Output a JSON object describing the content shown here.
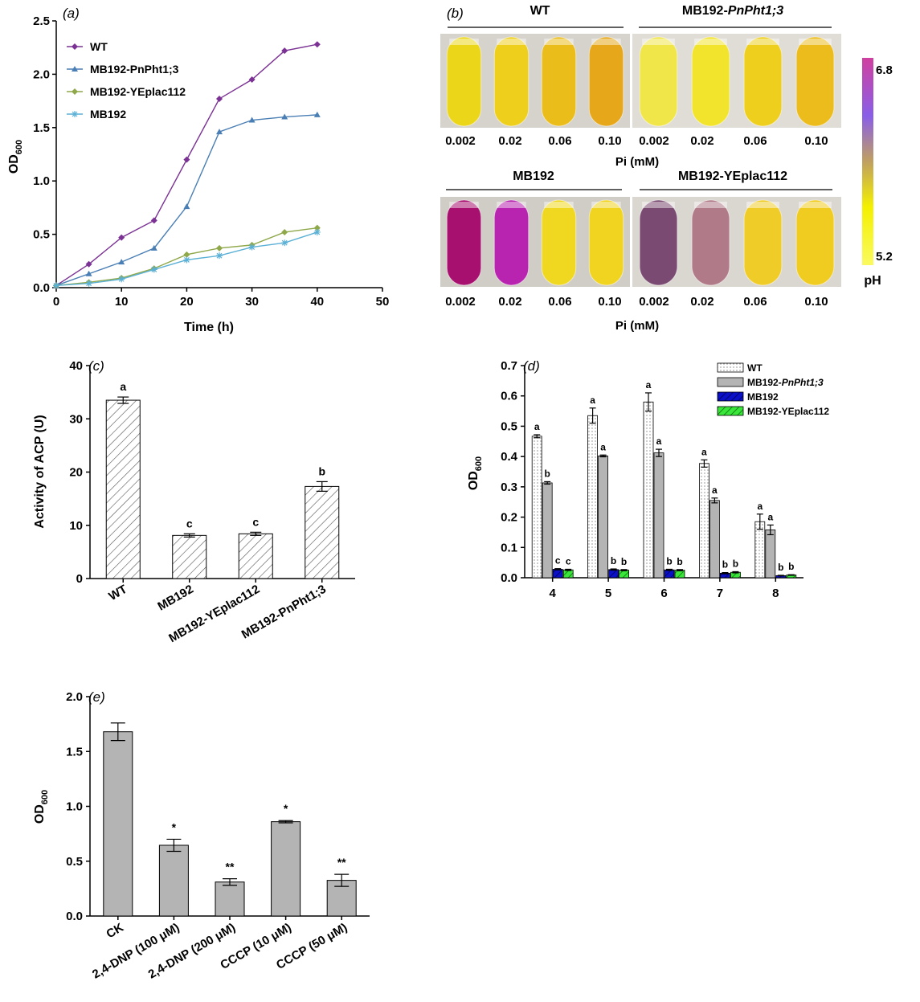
{
  "colors": {
    "wt": "#7b3294",
    "pnpht": "#4a7fb5",
    "yeplac": "#8fa84a",
    "mb192": "#5bb0d6",
    "bar_blue": "#0a10c8",
    "bar_green": "#39e639",
    "bar_gray": "#b4b4b4",
    "yellow": "#f2e21a",
    "orange": "#e8a81a",
    "magenta": "#b0106a",
    "violet": "#a83ac8",
    "mauve": "#8a5a7a",
    "pink": "#c08088"
  },
  "chart_data": [
    {
      "panel": "(a)",
      "type": "line",
      "xlabel": "Time (h)",
      "ylabel": "OD",
      "ylabel_sub": "600",
      "xlim": [
        0,
        50
      ],
      "ylim": [
        0,
        2.5
      ],
      "xticks": [
        "0",
        "10",
        "20",
        "30",
        "40",
        "50"
      ],
      "yticks": [
        "0.0",
        "0.5",
        "1.0",
        "1.5",
        "2.0",
        "2.5"
      ],
      "legend_position": "top-left",
      "x": [
        0,
        5,
        10,
        15,
        20,
        25,
        30,
        35,
        40
      ],
      "series": [
        {
          "name": "WT",
          "marker": "diamond",
          "values": [
            0.02,
            0.22,
            0.47,
            0.63,
            1.2,
            1.77,
            1.95,
            2.22,
            2.28
          ]
        },
        {
          "name": "MB192-PnPht1;3",
          "marker": "triangle",
          "values": [
            0.02,
            0.13,
            0.24,
            0.37,
            0.76,
            1.46,
            1.57,
            1.6,
            1.62
          ]
        },
        {
          "name": "MB192-YEplac112",
          "marker": "diamond",
          "values": [
            0.02,
            0.05,
            0.09,
            0.18,
            0.31,
            0.37,
            0.4,
            0.52,
            0.56
          ]
        },
        {
          "name": "MB192",
          "marker": "star",
          "values": [
            0.02,
            0.04,
            0.08,
            0.17,
            0.26,
            0.3,
            0.38,
            0.42,
            0.52
          ]
        }
      ]
    },
    {
      "panel": "(c)",
      "type": "bar",
      "ylabel": "Activity of ACP (U)",
      "ylim": [
        0,
        40
      ],
      "yticks": [
        "0",
        "10",
        "20",
        "30",
        "40"
      ],
      "categories": [
        "WT",
        "MB192",
        "MB192-YEplac112",
        "MB192-PnPht1;3"
      ],
      "values": [
        33.5,
        8.1,
        8.4,
        17.3
      ],
      "errors": [
        0.6,
        0.3,
        0.3,
        0.9
      ],
      "letters": [
        "a",
        "c",
        "c",
        "b"
      ]
    },
    {
      "panel": "(d)",
      "type": "bar",
      "ylabel": "OD",
      "ylabel_sub": "600",
      "ylim": [
        0,
        0.7
      ],
      "yticks": [
        "0.0",
        "0.1",
        "0.2",
        "0.3",
        "0.4",
        "0.5",
        "0.6",
        "0.7"
      ],
      "categories": [
        "4",
        "5",
        "6",
        "7",
        "8"
      ],
      "legend_position": "top-right",
      "series": [
        {
          "name": "WT",
          "values": [
            0.467,
            0.535,
            0.58,
            0.377,
            0.185
          ],
          "errors": [
            0.005,
            0.025,
            0.03,
            0.012,
            0.025
          ],
          "letters": [
            "a",
            "a",
            "a",
            "a",
            "a"
          ]
        },
        {
          "name": "MB192-PnPht1;3",
          "values": [
            0.313,
            0.402,
            0.412,
            0.255,
            0.158
          ],
          "errors": [
            0.004,
            0.003,
            0.012,
            0.008,
            0.016
          ],
          "letters": [
            "b",
            "a",
            "a",
            "a",
            "a"
          ]
        },
        {
          "name": "MB192",
          "values": [
            0.028,
            0.027,
            0.026,
            0.015,
            0.007
          ],
          "errors": [
            0.002,
            0.002,
            0.002,
            0.002,
            0.001
          ],
          "letters": [
            "c",
            "b",
            "b",
            "b",
            "b"
          ]
        },
        {
          "name": "MB192-YEplac112",
          "values": [
            0.026,
            0.025,
            0.025,
            0.018,
            0.009
          ],
          "errors": [
            0.002,
            0.002,
            0.002,
            0.002,
            0.001
          ],
          "letters": [
            "c",
            "b",
            "b",
            "b",
            "b"
          ]
        }
      ]
    },
    {
      "panel": "(e)",
      "type": "bar",
      "ylabel": "OD",
      "ylabel_sub": "600",
      "ylim": [
        0,
        2.0
      ],
      "yticks": [
        "0.0",
        "0.5",
        "1.0",
        "1.5",
        "2.0"
      ],
      "categories": [
        "CK",
        "2,4-DNP (100 μM)",
        "2,4-DNP (200 μM)",
        "CCCP (10 μM)",
        "CCCP (50 μM)"
      ],
      "values": [
        1.68,
        0.645,
        0.31,
        0.86,
        0.325
      ],
      "errors": [
        0.08,
        0.055,
        0.03,
        0.01,
        0.055
      ],
      "marks": [
        "",
        "*",
        "**",
        "*",
        "**"
      ]
    }
  ],
  "panel_b": {
    "label": "(b)",
    "group_titles": [
      "WT",
      "MB192-",
      "PnPht1;3",
      "MB192",
      "MB192-YEplac112"
    ],
    "concentrations": [
      "0.002",
      "0.02",
      "0.06",
      "0.10"
    ],
    "axis_label": "Pi (mM)",
    "colorbar": {
      "label": "pH",
      "max": "6.8",
      "min": "5.2"
    },
    "tube_colors": {
      "WT": [
        "#ecd61a",
        "#eecf1c",
        "#ebbd1a",
        "#e6a81a"
      ],
      "MB192-PnPht1;3": [
        "#f0e64a",
        "#f2e42c",
        "#efcf1e",
        "#ebbc1c"
      ],
      "MB192": [
        "#a81070",
        "#b824b0",
        "#f0d820",
        "#f0d420"
      ],
      "MB192-YEplac112": [
        "#7a4a72",
        "#b07a88",
        "#f0cc28",
        "#f0cc20"
      ]
    }
  }
}
